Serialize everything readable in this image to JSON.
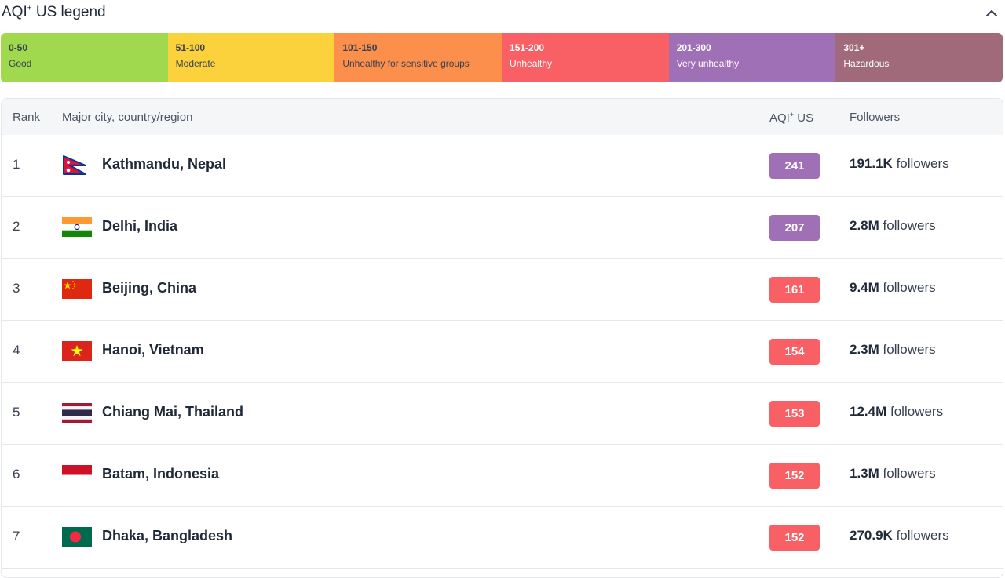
{
  "legend": {
    "title": "AQI",
    "title_sup": "+",
    "title_suffix": " US legend",
    "collapse_icon": "chevron-up-icon",
    "segments": [
      {
        "range": "0-50",
        "label": "Good",
        "color": "#a0d94d"
      },
      {
        "range": "51-100",
        "label": "Moderate",
        "color": "#fbd13c"
      },
      {
        "range": "101-150",
        "label": "Unhealthy for sensitive groups",
        "color": "#fd8f4c"
      },
      {
        "range": "151-200",
        "label": "Unhealthy",
        "color": "#f86065"
      },
      {
        "range": "201-300",
        "label": "Very unhealthy",
        "color": "#a070b6"
      },
      {
        "range": "301+",
        "label": "Hazardous",
        "color": "#a06a7b"
      }
    ]
  },
  "table": {
    "headers": {
      "rank": "Rank",
      "city": "Major city, country/region",
      "aqi": "AQI",
      "aqi_sup": "+",
      "aqi_suffix": " US",
      "followers": "Followers"
    },
    "followers_suffix": "followers",
    "rows": [
      {
        "rank": "1",
        "city": "Kathmandu, Nepal",
        "flag": "nepal-flag-icon",
        "aqi": "241",
        "aqi_color": "#a070b6",
        "followers": "191.1K"
      },
      {
        "rank": "2",
        "city": "Delhi, India",
        "flag": "india-flag-icon",
        "aqi": "207",
        "aqi_color": "#a070b6",
        "followers": "2.8M"
      },
      {
        "rank": "3",
        "city": "Beijing, China",
        "flag": "china-flag-icon",
        "aqi": "161",
        "aqi_color": "#f86065",
        "followers": "9.4M"
      },
      {
        "rank": "4",
        "city": "Hanoi, Vietnam",
        "flag": "vietnam-flag-icon",
        "aqi": "154",
        "aqi_color": "#f86065",
        "followers": "2.3M"
      },
      {
        "rank": "5",
        "city": "Chiang Mai, Thailand",
        "flag": "thailand-flag-icon",
        "aqi": "153",
        "aqi_color": "#f86065",
        "followers": "12.4M"
      },
      {
        "rank": "6",
        "city": "Batam, Indonesia",
        "flag": "indonesia-flag-icon",
        "aqi": "152",
        "aqi_color": "#f86065",
        "followers": "1.3M"
      },
      {
        "rank": "7",
        "city": "Dhaka, Bangladesh",
        "flag": "bangladesh-flag-icon",
        "aqi": "152",
        "aqi_color": "#f86065",
        "followers": "270.9K"
      }
    ]
  }
}
